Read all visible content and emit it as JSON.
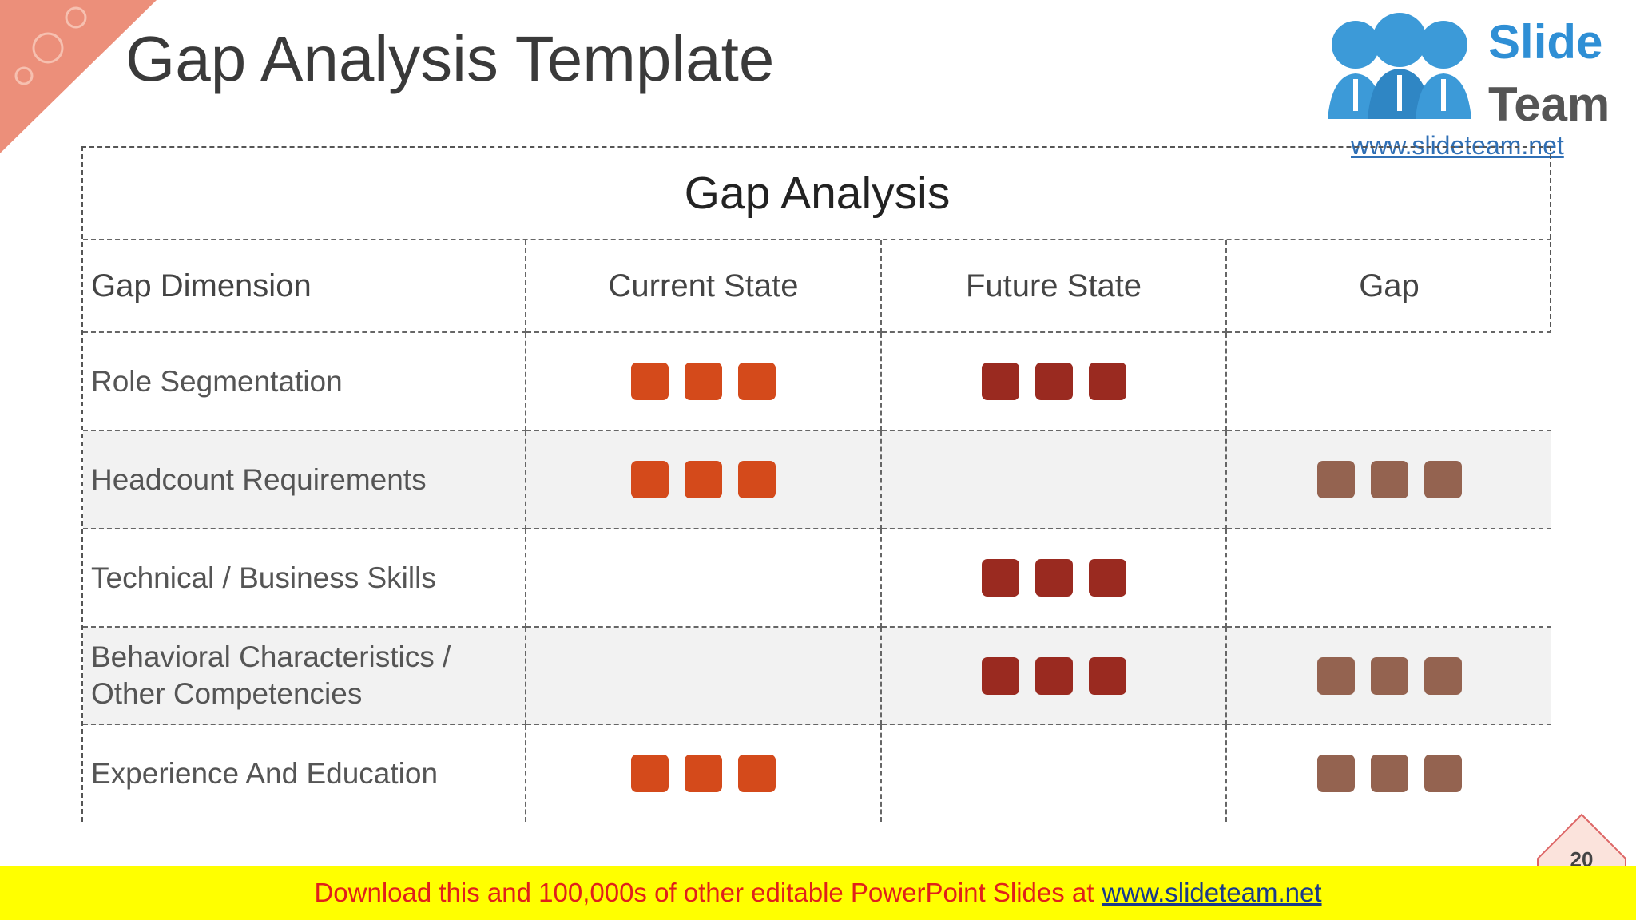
{
  "slide_title": "Gap Analysis Template",
  "logo": {
    "word1": "Slide",
    "word2": "Team",
    "url": "www.slideteam.net"
  },
  "table": {
    "title": "Gap Analysis",
    "columns": [
      "Gap Dimension",
      "Current State",
      "Future State",
      "Gap"
    ],
    "rows": [
      {
        "label": "Role Segmentation",
        "current": true,
        "future": true,
        "gap": false
      },
      {
        "label": "Headcount Requirements",
        "current": true,
        "future": false,
        "gap": true
      },
      {
        "label": "Technical / Business Skills",
        "current": false,
        "future": true,
        "gap": false
      },
      {
        "label": "Behavioral Characteristics / Other Competencies",
        "current": false,
        "future": true,
        "gap": true
      },
      {
        "label": "Experience And Education",
        "current": true,
        "future": false,
        "gap": true
      }
    ],
    "mark_colors": {
      "current": "#d44a1b",
      "future": "#9a2a20",
      "gap": "#946350"
    }
  },
  "page_number": "20",
  "footer": {
    "text": "Download this and 100,000s of other editable PowerPoint Slides at",
    "link": "www.slideteam.net"
  }
}
